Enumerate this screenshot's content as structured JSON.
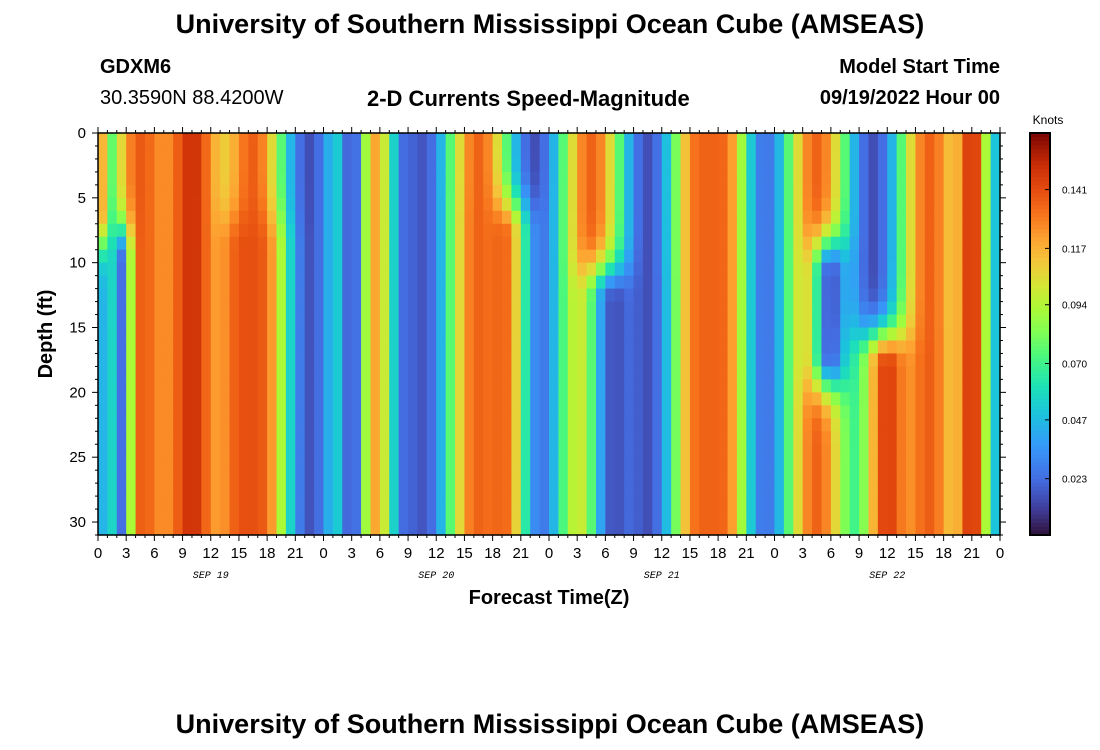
{
  "header": {
    "title": "University of Southern Mississippi Ocean Cube (AMSEAS)",
    "station": "GDXM6",
    "coords": "30.3590N  88.4200W",
    "chart_title": "2-D Currents Speed-Magnitude",
    "model_start_label": "Model Start Time",
    "model_start_value": "09/19/2022 Hour 00"
  },
  "footer": {
    "title": "University of Southern Mississippi Ocean Cube (AMSEAS)"
  },
  "colors": {
    "frame": "#000000",
    "background": "#ffffff"
  },
  "chart_data": {
    "type": "heatmap",
    "title": "2-D Currents Speed-Magnitude",
    "xlabel": "Forecast Time(Z)",
    "ylabel": "Depth (ft)",
    "x_range_hours": [
      0,
      96
    ],
    "y_range_ft": [
      0,
      31
    ],
    "x_tick_labels": [
      "0",
      "3",
      "6",
      "9",
      "12",
      "15",
      "18",
      "21",
      "0",
      "3",
      "6",
      "9",
      "12",
      "15",
      "18",
      "21",
      "0",
      "3",
      "6",
      "9",
      "12",
      "15",
      "18",
      "21",
      "0",
      "3",
      "6",
      "9",
      "12",
      "15",
      "18",
      "21",
      "0"
    ],
    "day_labels": [
      {
        "label": "SEP 19",
        "hour": 12
      },
      {
        "label": "SEP 20",
        "hour": 36
      },
      {
        "label": "SEP 21",
        "hour": 60
      },
      {
        "label": "SEP 22",
        "hour": 84
      }
    ],
    "y_ticks": [
      0,
      5,
      10,
      15,
      20,
      25,
      30
    ],
    "colorbar": {
      "unit": "Knots",
      "min": 0.0,
      "max": 0.1641,
      "tick_values": [
        0.141,
        0.117,
        0.094,
        0.07,
        0.047,
        0.023
      ],
      "tick_labels": [
        "0.141",
        "0.117",
        "0.094",
        "0.070",
        "0.047",
        "0.023"
      ]
    },
    "speed_features": [
      {
        "hour_center": 0.2,
        "hour_width": 0.7,
        "depth_range": [
          0,
          6
        ],
        "speed": 0.13
      },
      {
        "hour_center": 2.5,
        "hour_width": 1.0,
        "depth_range": [
          10,
          31
        ],
        "speed": 0.02
      },
      {
        "hour_center": 10,
        "hour_width": 4.0,
        "depth_range": [
          0,
          31
        ],
        "speed": 0.15
      },
      {
        "hour_center": 16,
        "hour_width": 3.0,
        "depth_range": [
          9,
          31
        ],
        "speed": 0.14
      },
      {
        "hour_center": 27,
        "hour_width": 1.5,
        "depth_range": [
          0,
          31
        ],
        "speed": 0.012
      },
      {
        "hour_center": 33,
        "hour_width": 1.5,
        "depth_range": [
          0,
          31
        ],
        "speed": 0.02
      },
      {
        "hour_center": 43,
        "hour_width": 2.5,
        "depth_range": [
          8,
          31
        ],
        "speed": 0.135
      },
      {
        "hour_center": 55,
        "hour_width": 3.0,
        "depth_range": [
          13,
          31
        ],
        "speed": 0.015
      },
      {
        "hour_center": 66,
        "hour_width": 3.0,
        "depth_range": [
          0,
          31
        ],
        "speed": 0.135
      },
      {
        "hour_center": 78,
        "hour_width": 2.0,
        "depth_range": [
          11,
          17
        ],
        "speed": 0.015
      },
      {
        "hour_center": 84,
        "hour_width": 3.0,
        "depth_range": [
          18,
          31
        ],
        "speed": 0.145
      },
      {
        "hour_center": 93,
        "hour_width": 2.0,
        "depth_range": [
          0,
          31
        ],
        "speed": 0.15
      }
    ]
  }
}
